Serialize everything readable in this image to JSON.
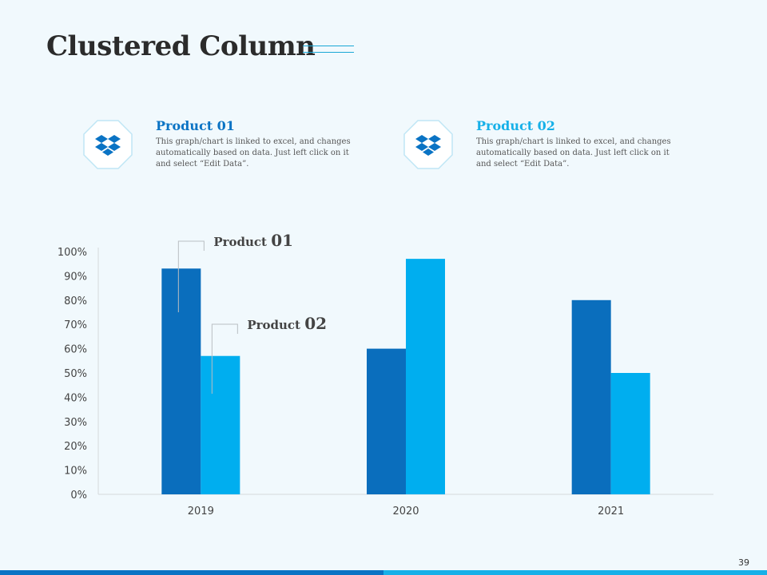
{
  "slide": {
    "title": "Clustered Column",
    "page_number": "39"
  },
  "cards": [
    {
      "heading": "Product 01",
      "description": "This graph/chart is linked to excel, and changes automatically based on data. Just left click on it and select “Edit Data”.",
      "icon": "dropbox-icon",
      "color": "#0a73c4"
    },
    {
      "heading": "Product 02",
      "description": "This graph/chart is linked to excel, and changes automatically based on data. Just left click on it and select “Edit Data”.",
      "icon": "dropbox-icon",
      "color": "#16b0e8"
    }
  ],
  "chart_data": {
    "type": "bar",
    "categories": [
      "2019",
      "2020",
      "2021"
    ],
    "series": [
      {
        "name": "Product 01",
        "values": [
          93,
          60,
          80
        ],
        "color": "#0a6ebd"
      },
      {
        "name": "Product 02",
        "values": [
          57,
          97,
          50
        ],
        "color": "#00aeef"
      }
    ],
    "ylim": [
      0,
      100
    ],
    "yticks": [
      "0%",
      "10%",
      "20%",
      "30%",
      "40%",
      "50%",
      "60%",
      "70%",
      "80%",
      "90%",
      "100%"
    ],
    "callouts": [
      {
        "series": "Product 01",
        "word": "Product",
        "number": "01"
      },
      {
        "series": "Product 02",
        "word": "Product",
        "number": "02"
      }
    ],
    "title": "",
    "xlabel": "",
    "ylabel": "",
    "grid": false
  }
}
